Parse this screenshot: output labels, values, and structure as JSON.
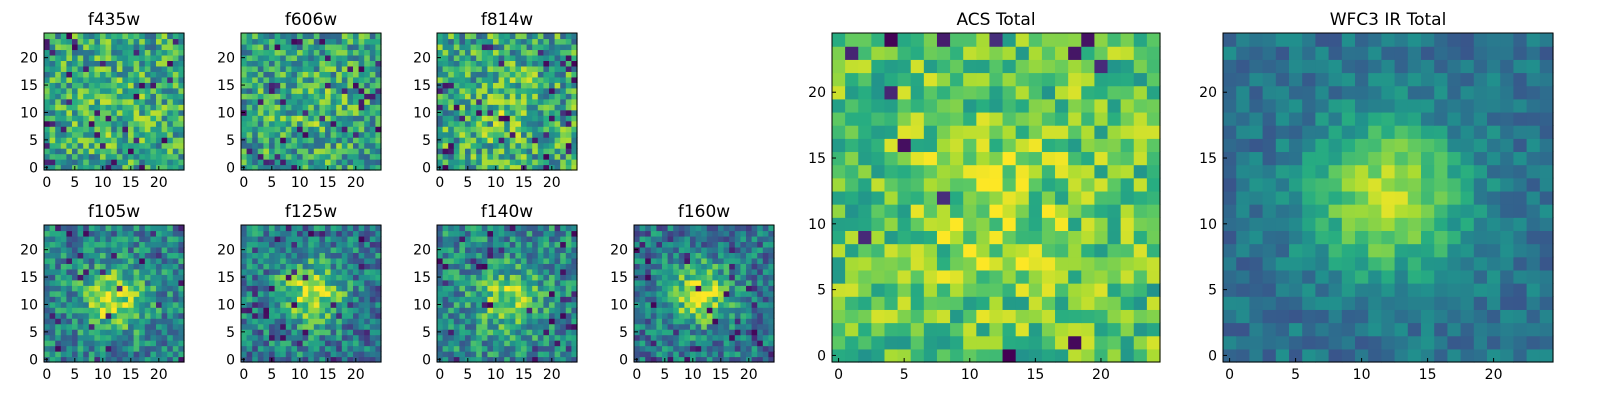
{
  "figure": {
    "description_colormap": "viridis",
    "colors": {
      "dark": "#440154",
      "blue": "#31688e",
      "teal": "#21908d",
      "green": "#5ec962",
      "yellow": "#fde725"
    }
  },
  "chart_data": [
    {
      "id": "f435w",
      "type": "heatmap",
      "title": "f435w",
      "grid_size": 25,
      "xlim": [
        0,
        24
      ],
      "ylim": [
        0,
        24
      ],
      "xticks": [
        0,
        5,
        10,
        15,
        20
      ],
      "yticks": [
        0,
        5,
        10,
        15,
        20
      ],
      "seed": 11,
      "base": 0.6,
      "noise": 0.28,
      "center": [
        12,
        11
      ],
      "sigma": 5,
      "peak": 0.08,
      "low_prob": 0.05,
      "grid": false
    },
    {
      "id": "f606w",
      "type": "heatmap",
      "title": "f606w",
      "grid_size": 25,
      "xlim": [
        0,
        24
      ],
      "ylim": [
        0,
        24
      ],
      "xticks": [
        0,
        5,
        10,
        15,
        20
      ],
      "yticks": [
        0,
        5,
        10,
        15,
        20
      ],
      "seed": 23,
      "base": 0.58,
      "noise": 0.28,
      "center": [
        12,
        11
      ],
      "sigma": 5,
      "peak": 0.1,
      "low_prob": 0.05,
      "grid": false
    },
    {
      "id": "f814w",
      "type": "heatmap",
      "title": "f814w",
      "grid_size": 25,
      "xlim": [
        0,
        24
      ],
      "ylim": [
        0,
        24
      ],
      "xticks": [
        0,
        5,
        10,
        15,
        20
      ],
      "yticks": [
        0,
        5,
        10,
        15,
        20
      ],
      "seed": 37,
      "base": 0.6,
      "noise": 0.3,
      "center": [
        12,
        11
      ],
      "sigma": 5,
      "peak": 0.1,
      "low_prob": 0.06,
      "grid": false
    },
    {
      "id": "f105w",
      "type": "heatmap",
      "title": "f105w",
      "grid_size": 25,
      "xlim": [
        0,
        24
      ],
      "ylim": [
        0,
        24
      ],
      "xticks": [
        0,
        5,
        10,
        15,
        20
      ],
      "yticks": [
        0,
        5,
        10,
        15,
        20
      ],
      "seed": 41,
      "base": 0.45,
      "noise": 0.24,
      "center": [
        12,
        11
      ],
      "sigma": 4,
      "peak": 0.45,
      "low_prob": 0.05,
      "grid": false
    },
    {
      "id": "f125w",
      "type": "heatmap",
      "title": "f125w",
      "grid_size": 25,
      "xlim": [
        0,
        24
      ],
      "ylim": [
        0,
        24
      ],
      "xticks": [
        0,
        5,
        10,
        15,
        20
      ],
      "yticks": [
        0,
        5,
        10,
        15,
        20
      ],
      "seed": 53,
      "base": 0.42,
      "noise": 0.26,
      "center": [
        12,
        12
      ],
      "sigma": 4,
      "peak": 0.5,
      "low_prob": 0.07,
      "grid": false
    },
    {
      "id": "f140w",
      "type": "heatmap",
      "title": "f140w",
      "grid_size": 25,
      "xlim": [
        0,
        24
      ],
      "ylim": [
        0,
        24
      ],
      "xticks": [
        0,
        5,
        10,
        15,
        20
      ],
      "yticks": [
        0,
        5,
        10,
        15,
        20
      ],
      "seed": 67,
      "base": 0.48,
      "noise": 0.24,
      "center": [
        12,
        11
      ],
      "sigma": 4,
      "peak": 0.35,
      "low_prob": 0.05,
      "grid": false
    },
    {
      "id": "f160w",
      "type": "heatmap",
      "title": "f160w",
      "grid_size": 25,
      "xlim": [
        0,
        24
      ],
      "ylim": [
        0,
        24
      ],
      "xticks": [
        0,
        5,
        10,
        15,
        20
      ],
      "yticks": [
        0,
        5,
        10,
        15,
        20
      ],
      "seed": 79,
      "base": 0.4,
      "noise": 0.24,
      "center": [
        11,
        12
      ],
      "sigma": 4,
      "peak": 0.5,
      "low_prob": 0.06,
      "grid": false
    },
    {
      "id": "acs_total",
      "type": "heatmap",
      "title": "ACS Total",
      "grid_size": 25,
      "xlim": [
        0,
        24
      ],
      "ylim": [
        0,
        24
      ],
      "xticks": [
        0,
        5,
        10,
        15,
        20
      ],
      "yticks": [
        0,
        5,
        10,
        15,
        20
      ],
      "seed": 97,
      "base": 0.72,
      "noise": 0.22,
      "center": [
        12,
        11
      ],
      "sigma": 5,
      "peak": 0.12,
      "low_prob": 0.02,
      "grid": false
    },
    {
      "id": "wfc3_ir_total",
      "type": "heatmap",
      "title": "WFC3 IR Total",
      "grid_size": 25,
      "xlim": [
        0,
        24
      ],
      "ylim": [
        0,
        24
      ],
      "xticks": [
        0,
        5,
        10,
        15,
        20
      ],
      "yticks": [
        0,
        5,
        10,
        15,
        20
      ],
      "seed": 113,
      "base": 0.38,
      "noise": 0.12,
      "center": [
        12,
        12
      ],
      "sigma": 4,
      "peak": 0.55,
      "low_prob": 0.0,
      "grid": false
    }
  ]
}
